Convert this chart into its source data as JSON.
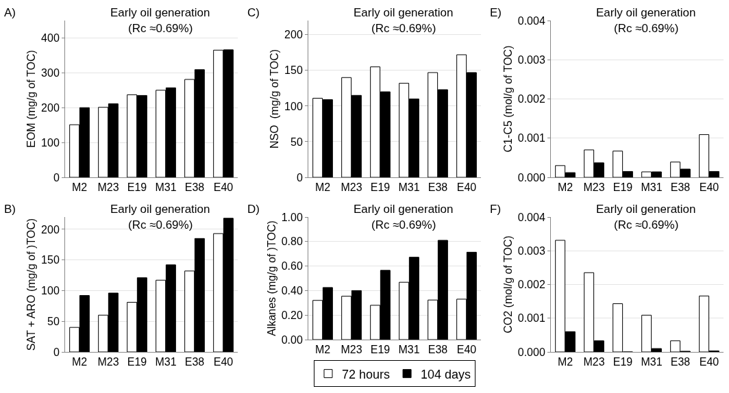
{
  "chart_data": [
    {
      "type": "bar",
      "title": "Early oil generation",
      "subtitle": "(Rc ≈0.69%)",
      "ylabel": "EOM (mg/g of TOC)",
      "annotations": [
        "A)"
      ],
      "categories": [
        "M2",
        "M23",
        "E19",
        "M31",
        "E38",
        "E40"
      ],
      "series": [
        {
          "color": "#ffffff",
          "values": [
            151,
            201,
            237,
            250,
            281,
            365
          ]
        },
        {
          "color": "#000000",
          "values": [
            200,
            211,
            235,
            257,
            309,
            366
          ]
        }
      ],
      "ylim": [
        0,
        450
      ],
      "yticks": [
        0,
        100,
        200,
        300,
        400
      ],
      "grid": "y",
      "legend": false
    },
    {
      "type": "bar",
      "title": "Early oil generation",
      "subtitle": "(Rc ≈0.69%)",
      "ylabel": "NSO  (mg/g of TOC)",
      "annotations": [
        "C)"
      ],
      "categories": [
        "M2",
        "M23",
        "E19",
        "M31",
        "E38",
        "E40"
      ],
      "series": [
        {
          "color": "#ffffff",
          "values": [
            111,
            140,
            155,
            132,
            147,
            172
          ]
        },
        {
          "color": "#000000",
          "values": [
            109,
            115,
            120,
            110,
            123,
            147
          ]
        }
      ],
      "ylim": [
        0,
        220
      ],
      "yticks": [
        0,
        50,
        100,
        150,
        200
      ],
      "grid": "y",
      "legend": false
    },
    {
      "type": "bar",
      "title": "Early oil generation",
      "subtitle": "(Rc ≈0.69%)",
      "ylabel": "C1-C5 (mol/g of TOC)",
      "annotations": [
        "E)"
      ],
      "categories": [
        "M2",
        "M23",
        "E19",
        "M31",
        "E38",
        "E40"
      ],
      "series": [
        {
          "color": "#ffffff",
          "values": [
            0.0003,
            0.0007,
            0.00067,
            0.00014,
            0.00039,
            0.00109
          ]
        },
        {
          "color": "#000000",
          "values": [
            0.00012,
            0.00037,
            0.00015,
            0.00014,
            0.00021,
            0.00015
          ]
        }
      ],
      "ylim": [
        0,
        0.004
      ],
      "yticks": [
        {
          "value": 0,
          "label": "0.000"
        },
        {
          "value": 0.001,
          "label": "0.001"
        },
        {
          "value": 0.002,
          "label": "0.002"
        },
        {
          "value": 0.003,
          "label": "0.003"
        },
        {
          "value": 0.004,
          "label": "0.004"
        }
      ],
      "grid": "y",
      "legend": false
    },
    {
      "type": "bar",
      "title": "Early oil generation",
      "subtitle": "(Rc ≈0.69%)",
      "ylabel": "SAT + ARO (mg/g of )TOC)",
      "annotations": [
        "B)"
      ],
      "categories": [
        "M2",
        "M23",
        "E19",
        "M31",
        "E38",
        "E40"
      ],
      "series": [
        {
          "color": "#ffffff",
          "values": [
            40,
            60,
            81,
            117,
            132,
            193
          ]
        },
        {
          "color": "#000000",
          "values": [
            92,
            96,
            121,
            142,
            185,
            218
          ]
        }
      ],
      "ylim": [
        0,
        220
      ],
      "yticks": [
        0,
        50,
        100,
        150,
        200
      ],
      "grid": "y",
      "legend": false
    },
    {
      "type": "bar",
      "title": "Early oil generation",
      "subtitle": "(Rc ≈0.69%)",
      "ylabel": "Alkanes (mg/g of )TOC)",
      "annotations": [
        "D)"
      ],
      "categories": [
        "M2",
        "M23",
        "E19",
        "M31",
        "E38",
        "E40"
      ],
      "series": [
        {
          "name": "72 hours",
          "color": "#ffffff",
          "values": [
            0.32,
            0.354,
            0.28,
            0.468,
            0.323,
            0.33
          ]
        },
        {
          "name": "104 days",
          "color": "#000000",
          "values": [
            0.425,
            0.4,
            0.565,
            0.672,
            0.81,
            0.713
          ]
        }
      ],
      "ylim": [
        0,
        1
      ],
      "yticks": [
        {
          "value": 0,
          "label": "0.00"
        },
        {
          "value": 0.2,
          "label": "0.20"
        },
        {
          "value": 0.4,
          "label": "0.40"
        },
        {
          "value": 0.6,
          "label": "0.60"
        },
        {
          "value": 0.8,
          "label": "0.80"
        },
        {
          "value": 1,
          "label": "1.00"
        }
      ],
      "grid": "y",
      "legend": "bottom"
    },
    {
      "type": "bar",
      "title": "Early oil generation",
      "subtitle": "(Rc ≈0.69%)",
      "ylabel": "CO2 (mol/g of TOC)",
      "annotations": [
        "F)"
      ],
      "categories": [
        "M2",
        "M23",
        "E19",
        "M31",
        "E38",
        "E40"
      ],
      "series": [
        {
          "color": "#ffffff",
          "values": [
            0.00331,
            0.00235,
            0.00143,
            0.00109,
            0.00033,
            0.00166
          ]
        },
        {
          "color": "#000000",
          "values": [
            0.0006,
            0.00033,
            0,
            0.0001,
            2e-05,
            3e-05
          ]
        }
      ],
      "ylim": [
        0,
        0.004
      ],
      "yticks": [
        {
          "value": 0,
          "label": "0.000"
        },
        {
          "value": 0.001,
          "label": "0.001"
        },
        {
          "value": 0.002,
          "label": "0.002"
        },
        {
          "value": 0.003,
          "label": "0.003"
        },
        {
          "value": 0.004,
          "label": "0.004"
        }
      ],
      "grid": "y",
      "legend": false
    }
  ]
}
